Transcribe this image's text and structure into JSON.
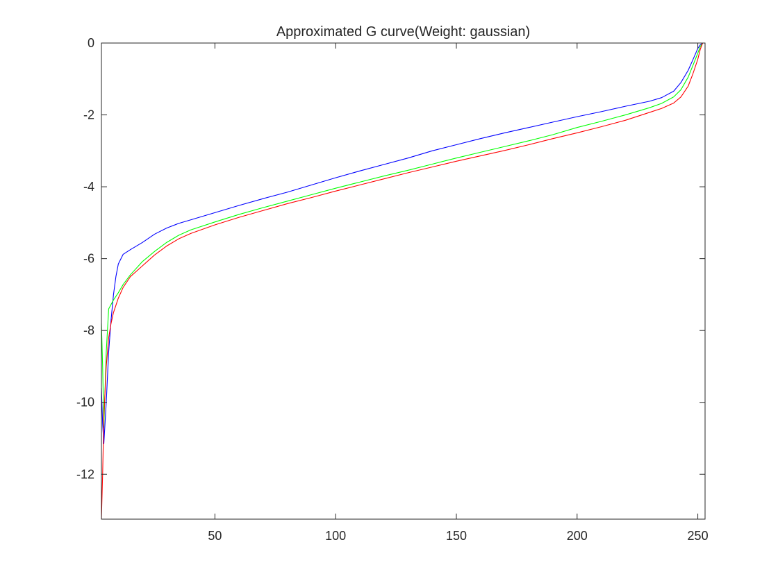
{
  "chart_data": {
    "type": "line",
    "title": "Approximated G curve(Weight: gaussian)",
    "xlabel": "",
    "ylabel": "",
    "xlim": [
      3,
      253
    ],
    "ylim": [
      -13.25,
      0
    ],
    "xticks": [
      50,
      100,
      150,
      200,
      250
    ],
    "yticks": [
      0,
      -2,
      -4,
      -6,
      -8,
      -10,
      -12
    ],
    "grid": false,
    "legend": null,
    "series": [
      {
        "color": "#0000ff",
        "points": [
          [
            3,
            -9.6
          ],
          [
            3.5,
            -10.6
          ],
          [
            4,
            -11.15
          ],
          [
            5,
            -10.0
          ],
          [
            6,
            -8.6
          ],
          [
            7,
            -7.7
          ],
          [
            8,
            -7.0
          ],
          [
            9,
            -6.5
          ],
          [
            10,
            -6.15
          ],
          [
            12,
            -5.88
          ],
          [
            15,
            -5.75
          ],
          [
            20,
            -5.55
          ],
          [
            25,
            -5.32
          ],
          [
            30,
            -5.15
          ],
          [
            35,
            -5.02
          ],
          [
            40,
            -4.92
          ],
          [
            50,
            -4.72
          ],
          [
            60,
            -4.52
          ],
          [
            70,
            -4.33
          ],
          [
            80,
            -4.15
          ],
          [
            90,
            -3.95
          ],
          [
            100,
            -3.75
          ],
          [
            110,
            -3.56
          ],
          [
            120,
            -3.38
          ],
          [
            130,
            -3.2
          ],
          [
            140,
            -3.0
          ],
          [
            150,
            -2.83
          ],
          [
            160,
            -2.66
          ],
          [
            170,
            -2.5
          ],
          [
            180,
            -2.35
          ],
          [
            190,
            -2.2
          ],
          [
            200,
            -2.05
          ],
          [
            210,
            -1.91
          ],
          [
            220,
            -1.76
          ],
          [
            230,
            -1.62
          ],
          [
            235,
            -1.52
          ],
          [
            240,
            -1.34
          ],
          [
            243,
            -1.1
          ],
          [
            246,
            -0.76
          ],
          [
            248,
            -0.46
          ],
          [
            250,
            -0.15
          ],
          [
            251,
            -0.05
          ],
          [
            252,
            0
          ]
        ]
      },
      {
        "color": "#00ff00",
        "points": [
          [
            3,
            -7.8
          ],
          [
            3.5,
            -9.0
          ],
          [
            4,
            -10.7
          ],
          [
            5,
            -8.6
          ],
          [
            6,
            -7.4
          ],
          [
            8,
            -7.15
          ],
          [
            10,
            -6.95
          ],
          [
            12,
            -6.72
          ],
          [
            15,
            -6.45
          ],
          [
            20,
            -6.08
          ],
          [
            25,
            -5.8
          ],
          [
            30,
            -5.55
          ],
          [
            35,
            -5.35
          ],
          [
            40,
            -5.2
          ],
          [
            50,
            -4.98
          ],
          [
            60,
            -4.77
          ],
          [
            70,
            -4.58
          ],
          [
            80,
            -4.4
          ],
          [
            90,
            -4.22
          ],
          [
            100,
            -4.04
          ],
          [
            110,
            -3.87
          ],
          [
            120,
            -3.7
          ],
          [
            130,
            -3.54
          ],
          [
            140,
            -3.37
          ],
          [
            150,
            -3.2
          ],
          [
            160,
            -3.04
          ],
          [
            170,
            -2.88
          ],
          [
            180,
            -2.72
          ],
          [
            190,
            -2.55
          ],
          [
            200,
            -2.35
          ],
          [
            210,
            -2.18
          ],
          [
            220,
            -2.0
          ],
          [
            230,
            -1.8
          ],
          [
            235,
            -1.68
          ],
          [
            240,
            -1.5
          ],
          [
            243,
            -1.3
          ],
          [
            246,
            -0.95
          ],
          [
            248,
            -0.62
          ],
          [
            250,
            -0.28
          ],
          [
            251,
            -0.1
          ],
          [
            252,
            0
          ]
        ]
      },
      {
        "color": "#ff0000",
        "points": [
          [
            3,
            -13.25
          ],
          [
            3.5,
            -12.0
          ],
          [
            4,
            -10.4
          ],
          [
            5,
            -9.0
          ],
          [
            6,
            -8.2
          ],
          [
            7,
            -7.8
          ],
          [
            8,
            -7.5
          ],
          [
            10,
            -7.1
          ],
          [
            12,
            -6.8
          ],
          [
            15,
            -6.5
          ],
          [
            20,
            -6.2
          ],
          [
            25,
            -5.9
          ],
          [
            30,
            -5.65
          ],
          [
            35,
            -5.45
          ],
          [
            40,
            -5.3
          ],
          [
            50,
            -5.06
          ],
          [
            60,
            -4.85
          ],
          [
            70,
            -4.66
          ],
          [
            80,
            -4.47
          ],
          [
            90,
            -4.3
          ],
          [
            100,
            -4.12
          ],
          [
            110,
            -3.95
          ],
          [
            120,
            -3.78
          ],
          [
            130,
            -3.61
          ],
          [
            140,
            -3.45
          ],
          [
            150,
            -3.29
          ],
          [
            160,
            -3.14
          ],
          [
            170,
            -2.99
          ],
          [
            180,
            -2.83
          ],
          [
            190,
            -2.66
          ],
          [
            200,
            -2.5
          ],
          [
            210,
            -2.33
          ],
          [
            220,
            -2.15
          ],
          [
            230,
            -1.93
          ],
          [
            235,
            -1.82
          ],
          [
            240,
            -1.67
          ],
          [
            243,
            -1.5
          ],
          [
            246,
            -1.2
          ],
          [
            248,
            -0.85
          ],
          [
            250,
            -0.45
          ],
          [
            251,
            -0.18
          ],
          [
            252,
            0
          ]
        ]
      }
    ]
  }
}
